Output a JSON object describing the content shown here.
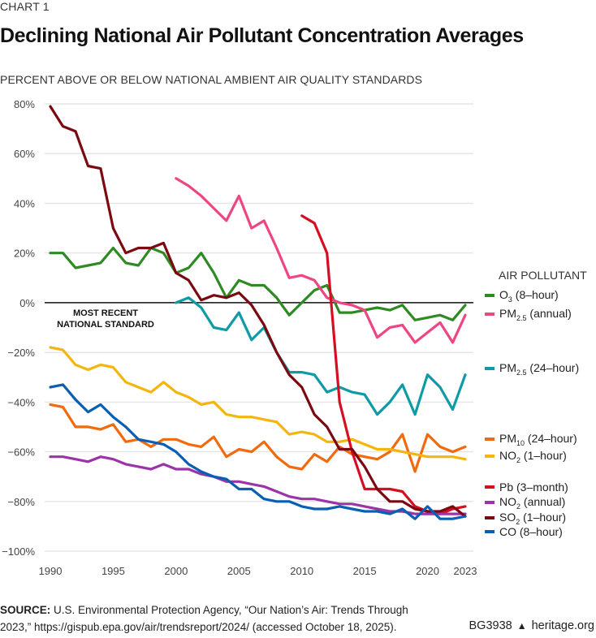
{
  "header": {
    "chart_label": "CHART 1",
    "title": "Declining National Air Pollutant Concentration Averages",
    "subtitle": "PERCENT ABOVE OR BELOW NATIONAL AMBIENT AIR QUALITY STANDARDS"
  },
  "standard_label_line1": "MOST RECENT",
  "standard_label_line2": "NATIONAL STANDARD",
  "legend": {
    "title": "AIR POLLUTANT",
    "items": [
      {
        "base": "O",
        "sub": "3",
        "rest": " (8–hour)",
        "color": "#2e8b24"
      },
      {
        "base": "PM",
        "sub": "2.5",
        "rest": " (annual)",
        "color": "#ee4584"
      },
      {
        "base": "PM",
        "sub": "2.5",
        "rest": " (24–hour)",
        "color": "#0f9ba6"
      },
      {
        "base": "PM",
        "sub": "10",
        "rest": " (24–hour)",
        "color": "#f06a0f"
      },
      {
        "base": "NO",
        "sub": "2",
        "rest": " (1–hour)",
        "color": "#f5b50f"
      },
      {
        "base": "Pb",
        "sub": "",
        "rest": " (3–month)",
        "color": "#d50f21"
      },
      {
        "base": "NO",
        "sub": "2",
        "rest": " (annual)",
        "color": "#9b34a6"
      },
      {
        "base": "SO",
        "sub": "2",
        "rest": " (1–hour)",
        "color": "#7a0a10"
      },
      {
        "base": "CO",
        "sub": "",
        "rest": " (8–hour)",
        "color": "#0a5fb4"
      }
    ]
  },
  "footer": {
    "source_label": "SOURCE:",
    "source_text": " U.S. Environmental Protection Agency, “Our Nation’s Air: Trends Through 2023,” https://gispub.epa.gov/air/trendsreport/2024/ (accessed October 18, 2025).",
    "report_id": "BG3938",
    "brand_icon": "liberty-bell-icon",
    "site": "heritage.org"
  },
  "chart_data": {
    "type": "line",
    "title": "Declining National Air Pollutant Concentration Averages",
    "ylabel": "Percent above or below National Ambient Air Quality Standards",
    "xlabel": "",
    "xlim": [
      1990,
      2023
    ],
    "ylim": [
      -100,
      80
    ],
    "x_ticks": [
      1990,
      1995,
      2000,
      2005,
      2010,
      2015,
      2020,
      2023
    ],
    "y_ticks": [
      80,
      60,
      40,
      20,
      0,
      -20,
      -40,
      -60,
      -80,
      -100
    ],
    "y_tick_labels": [
      "80%",
      "60%",
      "40%",
      "20%",
      "0%",
      "−20%",
      "−40%",
      "−60%",
      "−80%",
      "−100%"
    ],
    "grid": true,
    "reference_line": {
      "y": 0,
      "label": "MOST RECENT NATIONAL STANDARD"
    },
    "legend_position": "right",
    "series": [
      {
        "name": "O3 (8-hour)",
        "color": "#2e8b24",
        "start": 1990,
        "values": [
          20,
          20,
          14,
          15,
          16,
          22,
          16,
          15,
          22,
          20,
          12,
          14,
          20,
          12,
          2,
          9,
          7,
          7,
          2,
          -5,
          0,
          5,
          7,
          -4,
          -4,
          -3,
          -2,
          -3,
          -1,
          -7,
          -6,
          -5,
          -7,
          -1
        ]
      },
      {
        "name": "PM2.5 (annual)",
        "color": "#ee4584",
        "start": 2000,
        "values": [
          50,
          47,
          43,
          38,
          33,
          43,
          30,
          33,
          22,
          10,
          11,
          9,
          2,
          0,
          -1,
          -3,
          -14,
          -10,
          -9,
          -16,
          -12,
          -8,
          -16,
          -5
        ]
      },
      {
        "name": "PM2.5 (24-hour)",
        "color": "#0f9ba6",
        "start": 2000,
        "values": [
          0,
          2,
          -2,
          -10,
          -11,
          -4,
          -15,
          -10,
          -20,
          -28,
          -28,
          -29,
          -36,
          -34,
          -36,
          -37,
          -45,
          -40,
          -33,
          -45,
          -29,
          -34,
          -43,
          -29
        ]
      },
      {
        "name": "PM10 (24-hour)",
        "color": "#f06a0f",
        "start": 1990,
        "values": [
          -41,
          -42,
          -50,
          -50,
          -51,
          -49,
          -56,
          -55,
          -58,
          -55,
          -55,
          -57,
          -58,
          -54,
          -62,
          -59,
          -60,
          -56,
          -62,
          -66,
          -67,
          -61,
          -64,
          -58,
          -61,
          -62,
          -63,
          -60,
          -53,
          -68,
          -53,
          -58,
          -60,
          -58
        ]
      },
      {
        "name": "NO2 (1-hour)",
        "color": "#f5b50f",
        "start": 1990,
        "values": [
          -18,
          -19,
          -25,
          -27,
          -25,
          -26,
          -32,
          -34,
          -36,
          -32,
          -36,
          -38,
          -41,
          -40,
          -45,
          -46,
          -46,
          -47,
          -48,
          -53,
          -52,
          -53,
          -56,
          -56,
          -55,
          -57,
          -59,
          -59,
          -60,
          -61,
          -62,
          -62,
          -62,
          -63
        ]
      },
      {
        "name": "Pb (3-month)",
        "color": "#d50f21",
        "start": 2010,
        "values": [
          35,
          32,
          20,
          -40,
          -60,
          -75,
          -75,
          -75,
          -76,
          -82,
          -84,
          -85,
          -83,
          -82
        ]
      },
      {
        "name": "NO2 (annual)",
        "color": "#9b34a6",
        "start": 1990,
        "values": [
          -62,
          -62,
          -63,
          -64,
          -62,
          -63,
          -65,
          -66,
          -67,
          -65,
          -67,
          -67,
          -69,
          -70,
          -72,
          -72,
          -73,
          -74,
          -76,
          -78,
          -79,
          -79,
          -80,
          -81,
          -81,
          -82,
          -83,
          -84,
          -84,
          -85,
          -85,
          -85,
          -85,
          -85
        ]
      },
      {
        "name": "SO2 (1-hour)",
        "color": "#7a0a10",
        "start": 1990,
        "values": [
          79,
          71,
          69,
          55,
          54,
          30,
          20,
          22,
          22,
          24,
          12,
          9,
          1,
          3,
          2,
          4,
          -1,
          -9,
          -20,
          -29,
          -34,
          -45,
          -50,
          -59,
          -59,
          -66,
          -75,
          -80,
          -80,
          -83,
          -84,
          -84,
          -82,
          -86
        ]
      },
      {
        "name": "CO (8-hour)",
        "color": "#0a5fb4",
        "start": 1990,
        "values": [
          -34,
          -33,
          -39,
          -44,
          -41,
          -46,
          -50,
          -55,
          -56,
          -57,
          -60,
          -65,
          -68,
          -70,
          -71,
          -75,
          -75,
          -79,
          -80,
          -80,
          -82,
          -83,
          -83,
          -82,
          -83,
          -84,
          -84,
          -85,
          -83,
          -87,
          -82,
          -87,
          -87,
          -86
        ]
      }
    ]
  }
}
